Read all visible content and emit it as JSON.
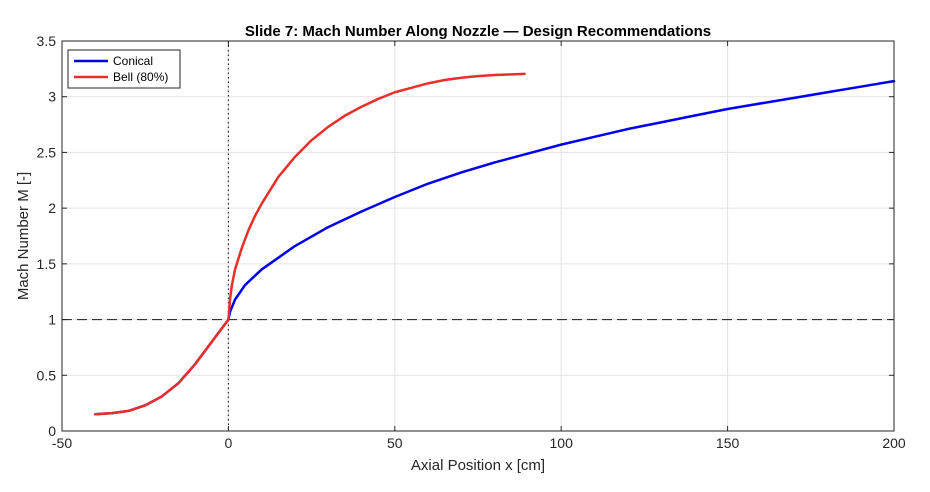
{
  "chart_data": {
    "type": "line",
    "title": "Slide 7: Mach Number Along Nozzle — Design Recommendations",
    "xlabel": "Axial Position x [cm]",
    "ylabel": "Mach Number M [-]",
    "xlim": [
      -50,
      200
    ],
    "ylim": [
      0,
      3.5
    ],
    "xticks": [
      -50,
      0,
      50,
      100,
      150,
      200
    ],
    "yticks": [
      0,
      0.5,
      1,
      1.5,
      2,
      2.5,
      3,
      3.5
    ],
    "xtick_labels": [
      "-50",
      "0",
      "50",
      "100",
      "150",
      "200"
    ],
    "ytick_labels": [
      "0",
      "0.5",
      "1",
      "1.5",
      "2",
      "2.5",
      "3",
      "3.5"
    ],
    "grid": true,
    "legend_position": "top-left",
    "reference_lines": [
      {
        "orientation": "horizontal",
        "value": 1,
        "style": "dashed",
        "color": "#000000"
      },
      {
        "orientation": "vertical",
        "value": 0,
        "style": "dotted",
        "color": "#000000"
      }
    ],
    "series": [
      {
        "name": "Conical",
        "color": "#0000ee",
        "x": [
          -40,
          -35,
          -30,
          -25,
          -20,
          -15,
          -10,
          -5,
          -2,
          0,
          0.5,
          2,
          5,
          10,
          20,
          30,
          40,
          50,
          60,
          70,
          80,
          90,
          100,
          110,
          120,
          130,
          140,
          150,
          160,
          170,
          180,
          190,
          200
        ],
        "y": [
          0.15,
          0.16,
          0.18,
          0.23,
          0.31,
          0.43,
          0.6,
          0.8,
          0.92,
          1.0,
          1.07,
          1.18,
          1.31,
          1.45,
          1.66,
          1.83,
          1.97,
          2.1,
          2.22,
          2.32,
          2.41,
          2.49,
          2.57,
          2.64,
          2.71,
          2.77,
          2.83,
          2.89,
          2.94,
          2.99,
          3.04,
          3.09,
          3.14
        ]
      },
      {
        "name": "Bell (80%)",
        "color": "#e8302a",
        "x": [
          -40,
          -35,
          -30,
          -25,
          -20,
          -15,
          -10,
          -5,
          -2,
          0,
          0.5,
          1,
          2,
          4,
          6,
          8,
          10,
          15,
          20,
          25,
          30,
          35,
          40,
          45,
          50,
          55,
          60,
          65,
          70,
          75,
          80,
          85,
          89
        ],
        "y": [
          0.15,
          0.16,
          0.18,
          0.23,
          0.31,
          0.43,
          0.6,
          0.8,
          0.92,
          1.0,
          1.18,
          1.3,
          1.45,
          1.64,
          1.8,
          1.93,
          2.04,
          2.28,
          2.46,
          2.61,
          2.73,
          2.83,
          2.91,
          2.98,
          3.04,
          3.08,
          3.12,
          3.15,
          3.17,
          3.185,
          3.195,
          3.2,
          3.205
        ]
      }
    ]
  }
}
